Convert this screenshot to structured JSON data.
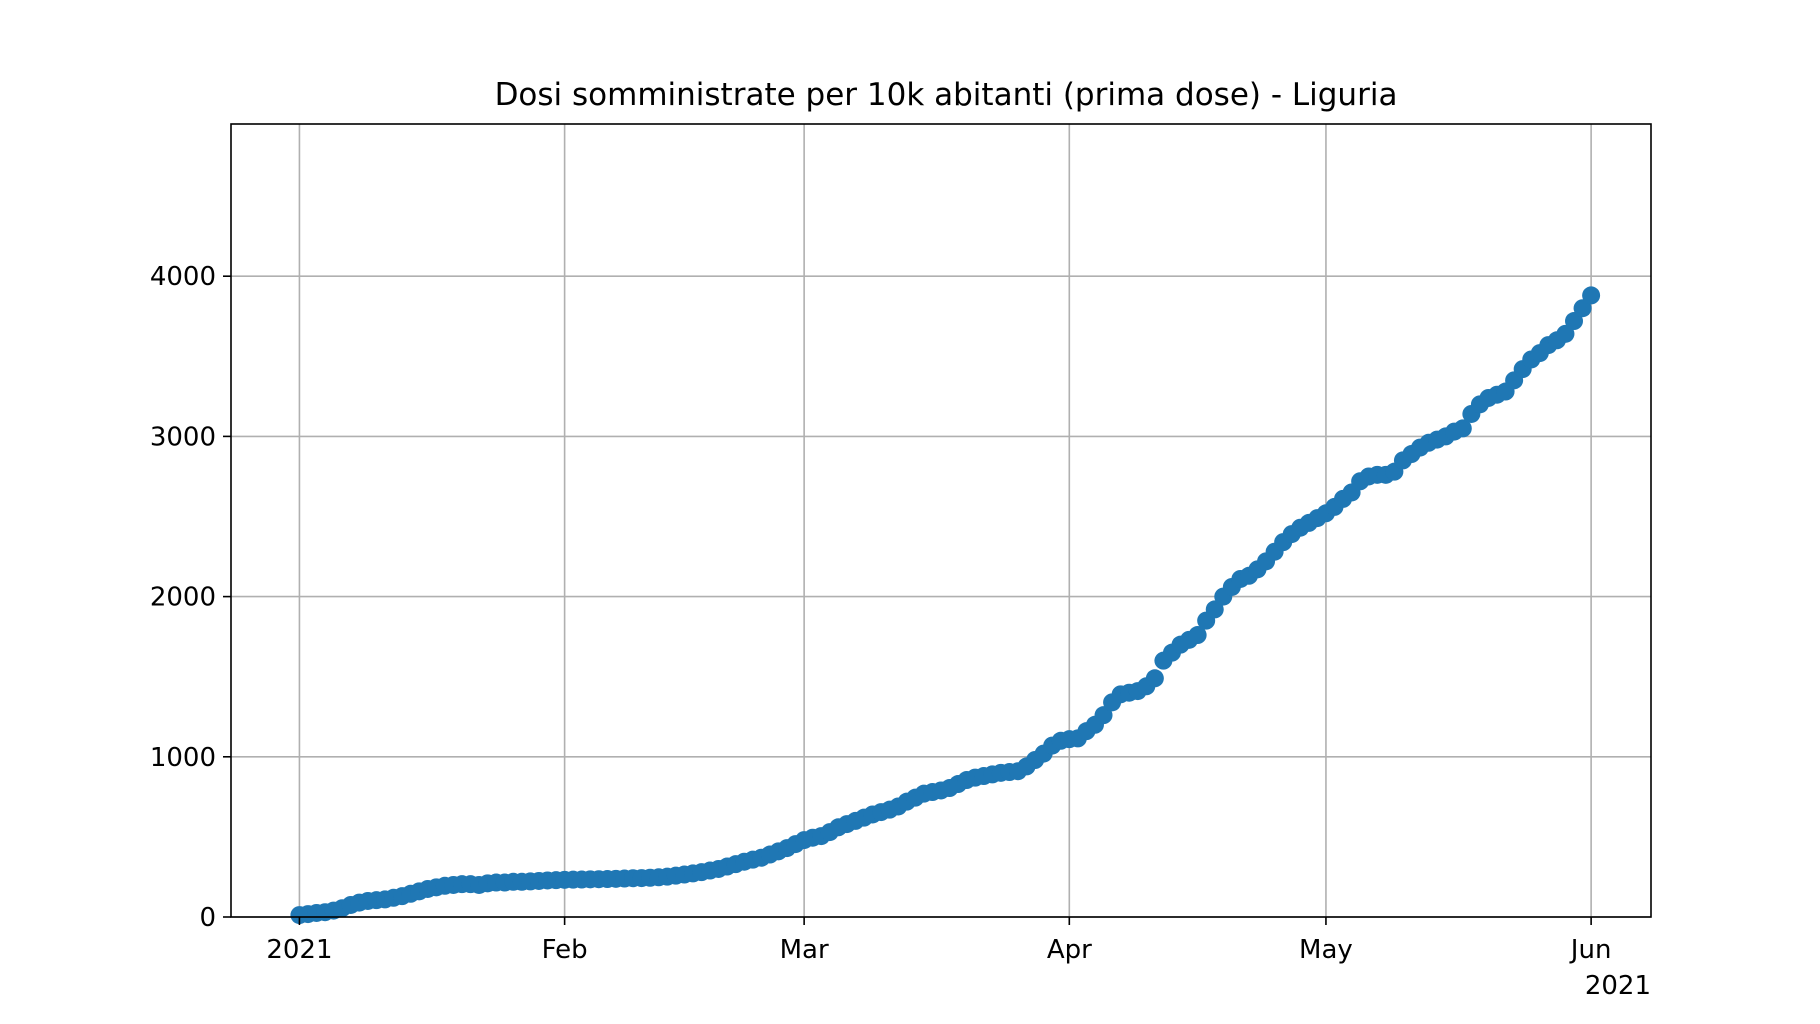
{
  "chart_data": {
    "type": "scatter",
    "title": "Dosi somministrate per 10k abitanti (prima dose) - Liguria",
    "xlabel": "",
    "ylabel": "",
    "x_axis": {
      "type": "date",
      "range": [
        "2020-12-24",
        "2021-06-08"
      ],
      "ticks": [
        {
          "date": "2021-01-01",
          "label": "2021"
        },
        {
          "date": "2021-02-01",
          "label": "Feb"
        },
        {
          "date": "2021-03-01",
          "label": "Mar"
        },
        {
          "date": "2021-04-01",
          "label": "Apr"
        },
        {
          "date": "2021-05-01",
          "label": "May"
        },
        {
          "date": "2021-06-01",
          "label": "Jun"
        }
      ],
      "offset_label": "2021"
    },
    "y_axis": {
      "range": [
        0,
        4950
      ],
      "ticks": [
        0,
        1000,
        2000,
        3000,
        4000
      ]
    },
    "grid": true,
    "marker_color": "#1f77b4",
    "series": [
      {
        "name": "",
        "points": [
          [
            "2021-01-01",
            12
          ],
          [
            "2021-01-02",
            18
          ],
          [
            "2021-01-03",
            25
          ],
          [
            "2021-01-04",
            30
          ],
          [
            "2021-01-05",
            40
          ],
          [
            "2021-01-06",
            55
          ],
          [
            "2021-01-07",
            75
          ],
          [
            "2021-01-08",
            90
          ],
          [
            "2021-01-09",
            100
          ],
          [
            "2021-01-10",
            105
          ],
          [
            "2021-01-11",
            110
          ],
          [
            "2021-01-12",
            120
          ],
          [
            "2021-01-13",
            130
          ],
          [
            "2021-01-14",
            145
          ],
          [
            "2021-01-15",
            160
          ],
          [
            "2021-01-16",
            175
          ],
          [
            "2021-01-17",
            185
          ],
          [
            "2021-01-18",
            195
          ],
          [
            "2021-01-19",
            200
          ],
          [
            "2021-01-20",
            205
          ],
          [
            "2021-01-21",
            205
          ],
          [
            "2021-01-22",
            200
          ],
          [
            "2021-01-23",
            210
          ],
          [
            "2021-01-24",
            215
          ],
          [
            "2021-01-25",
            215
          ],
          [
            "2021-01-26",
            220
          ],
          [
            "2021-01-27",
            220
          ],
          [
            "2021-01-28",
            222
          ],
          [
            "2021-01-29",
            225
          ],
          [
            "2021-01-30",
            228
          ],
          [
            "2021-01-31",
            230
          ],
          [
            "2021-02-01",
            232
          ],
          [
            "2021-02-02",
            233
          ],
          [
            "2021-02-03",
            234
          ],
          [
            "2021-02-04",
            235
          ],
          [
            "2021-02-05",
            236
          ],
          [
            "2021-02-06",
            237
          ],
          [
            "2021-02-07",
            238
          ],
          [
            "2021-02-08",
            240
          ],
          [
            "2021-02-09",
            242
          ],
          [
            "2021-02-10",
            243
          ],
          [
            "2021-02-11",
            245
          ],
          [
            "2021-02-12",
            248
          ],
          [
            "2021-02-13",
            252
          ],
          [
            "2021-02-14",
            258
          ],
          [
            "2021-02-15",
            265
          ],
          [
            "2021-02-16",
            272
          ],
          [
            "2021-02-17",
            280
          ],
          [
            "2021-02-18",
            290
          ],
          [
            "2021-02-19",
            300
          ],
          [
            "2021-02-20",
            315
          ],
          [
            "2021-02-21",
            330
          ],
          [
            "2021-02-22",
            345
          ],
          [
            "2021-02-23",
            358
          ],
          [
            "2021-02-24",
            370
          ],
          [
            "2021-02-25",
            390
          ],
          [
            "2021-02-26",
            410
          ],
          [
            "2021-02-27",
            430
          ],
          [
            "2021-02-28",
            455
          ],
          [
            "2021-03-01",
            480
          ],
          [
            "2021-03-02",
            495
          ],
          [
            "2021-03-03",
            505
          ],
          [
            "2021-03-04",
            530
          ],
          [
            "2021-03-05",
            560
          ],
          [
            "2021-03-06",
            580
          ],
          [
            "2021-03-07",
            600
          ],
          [
            "2021-03-08",
            620
          ],
          [
            "2021-03-09",
            640
          ],
          [
            "2021-03-10",
            655
          ],
          [
            "2021-03-11",
            670
          ],
          [
            "2021-03-12",
            690
          ],
          [
            "2021-03-13",
            720
          ],
          [
            "2021-03-14",
            745
          ],
          [
            "2021-03-15",
            770
          ],
          [
            "2021-03-16",
            780
          ],
          [
            "2021-03-17",
            790
          ],
          [
            "2021-03-18",
            805
          ],
          [
            "2021-03-19",
            830
          ],
          [
            "2021-03-20",
            855
          ],
          [
            "2021-03-21",
            870
          ],
          [
            "2021-03-22",
            880
          ],
          [
            "2021-03-23",
            890
          ],
          [
            "2021-03-24",
            900
          ],
          [
            "2021-03-25",
            905
          ],
          [
            "2021-03-26",
            910
          ],
          [
            "2021-03-27",
            940
          ],
          [
            "2021-03-28",
            980
          ],
          [
            "2021-03-29",
            1020
          ],
          [
            "2021-03-30",
            1070
          ],
          [
            "2021-03-31",
            1100
          ],
          [
            "2021-04-01",
            1110
          ],
          [
            "2021-04-02",
            1115
          ],
          [
            "2021-04-03",
            1160
          ],
          [
            "2021-04-04",
            1200
          ],
          [
            "2021-04-05",
            1260
          ],
          [
            "2021-04-06",
            1340
          ],
          [
            "2021-04-07",
            1390
          ],
          [
            "2021-04-08",
            1400
          ],
          [
            "2021-04-09",
            1410
          ],
          [
            "2021-04-10",
            1440
          ],
          [
            "2021-04-11",
            1490
          ],
          [
            "2021-04-12",
            1600
          ],
          [
            "2021-04-13",
            1650
          ],
          [
            "2021-04-14",
            1700
          ],
          [
            "2021-04-15",
            1730
          ],
          [
            "2021-04-16",
            1760
          ],
          [
            "2021-04-17",
            1850
          ],
          [
            "2021-04-18",
            1920
          ],
          [
            "2021-04-19",
            2000
          ],
          [
            "2021-04-20",
            2060
          ],
          [
            "2021-04-21",
            2110
          ],
          [
            "2021-04-22",
            2130
          ],
          [
            "2021-04-23",
            2170
          ],
          [
            "2021-04-24",
            2220
          ],
          [
            "2021-04-25",
            2280
          ],
          [
            "2021-04-26",
            2340
          ],
          [
            "2021-04-27",
            2390
          ],
          [
            "2021-04-28",
            2430
          ],
          [
            "2021-04-29",
            2460
          ],
          [
            "2021-04-30",
            2490
          ],
          [
            "2021-05-01",
            2520
          ],
          [
            "2021-05-02",
            2560
          ],
          [
            "2021-05-03",
            2610
          ],
          [
            "2021-05-04",
            2650
          ],
          [
            "2021-05-05",
            2720
          ],
          [
            "2021-05-06",
            2750
          ],
          [
            "2021-05-07",
            2760
          ],
          [
            "2021-05-08",
            2760
          ],
          [
            "2021-05-09",
            2780
          ],
          [
            "2021-05-10",
            2850
          ],
          [
            "2021-05-11",
            2890
          ],
          [
            "2021-05-12",
            2930
          ],
          [
            "2021-05-13",
            2960
          ],
          [
            "2021-05-14",
            2980
          ],
          [
            "2021-05-15",
            3000
          ],
          [
            "2021-05-16",
            3030
          ],
          [
            "2021-05-17",
            3050
          ],
          [
            "2021-05-18",
            3140
          ],
          [
            "2021-05-19",
            3200
          ],
          [
            "2021-05-20",
            3240
          ],
          [
            "2021-05-21",
            3260
          ],
          [
            "2021-05-22",
            3280
          ],
          [
            "2021-05-23",
            3350
          ],
          [
            "2021-05-24",
            3420
          ],
          [
            "2021-05-25",
            3480
          ],
          [
            "2021-05-26",
            3520
          ],
          [
            "2021-05-27",
            3570
          ],
          [
            "2021-05-28",
            3600
          ],
          [
            "2021-05-29",
            3640
          ],
          [
            "2021-05-30",
            3720
          ],
          [
            "2021-05-31",
            3800
          ],
          [
            "2021-06-01",
            3880
          ]
        ]
      }
    ]
  }
}
